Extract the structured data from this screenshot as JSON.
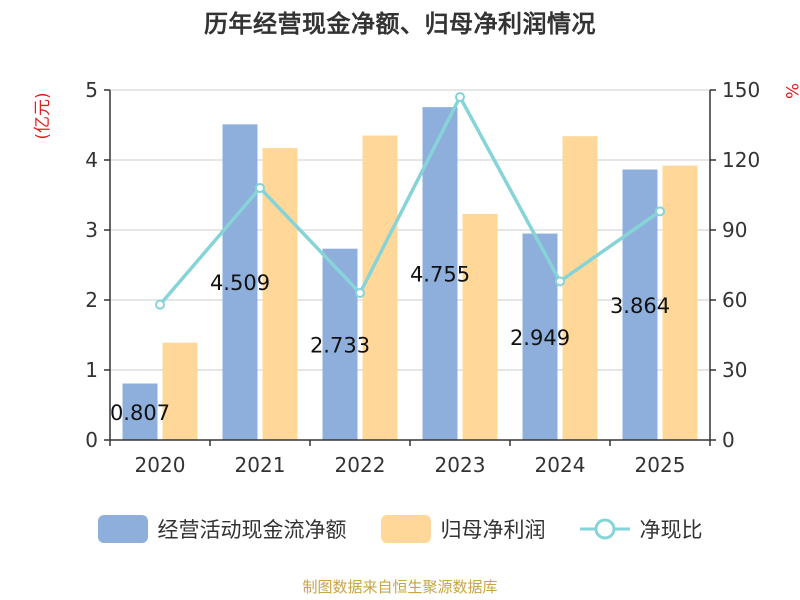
{
  "chart_data": {
    "type": "bar",
    "title": "历年经营现金净额、归母净利润情况",
    "categories": [
      "2020",
      "2021",
      "2022",
      "2023",
      "2024",
      "2025"
    ],
    "series": [
      {
        "name": "经营活动现金流净额",
        "type": "bar",
        "axis": "left",
        "color": "#8eafdc",
        "values": [
          0.807,
          4.509,
          2.733,
          4.755,
          2.949,
          3.864
        ],
        "labels": [
          "0.807",
          "4.509",
          "2.733",
          "4.755",
          "2.949",
          "3.864"
        ]
      },
      {
        "name": "归母净利润",
        "type": "bar",
        "axis": "left",
        "color": "#ffd899",
        "values": [
          1.39,
          4.17,
          4.35,
          3.23,
          4.34,
          3.92
        ]
      },
      {
        "name": "净现比",
        "type": "line",
        "axis": "right",
        "color": "#86d4d8",
        "values": [
          58,
          108,
          63,
          147,
          68,
          98
        ]
      }
    ],
    "y_left": {
      "label": "(亿元)",
      "ylim": [
        0,
        5
      ],
      "ticks": [
        "0",
        "1",
        "2",
        "3",
        "4",
        "5"
      ]
    },
    "y_right": {
      "label": "%",
      "ylim": [
        0,
        150
      ],
      "ticks": [
        "0",
        "30",
        "60",
        "90",
        "120",
        "150"
      ]
    },
    "grid": true,
    "legend_position": "bottom"
  },
  "source": "制图数据来自恒生聚源数据库"
}
